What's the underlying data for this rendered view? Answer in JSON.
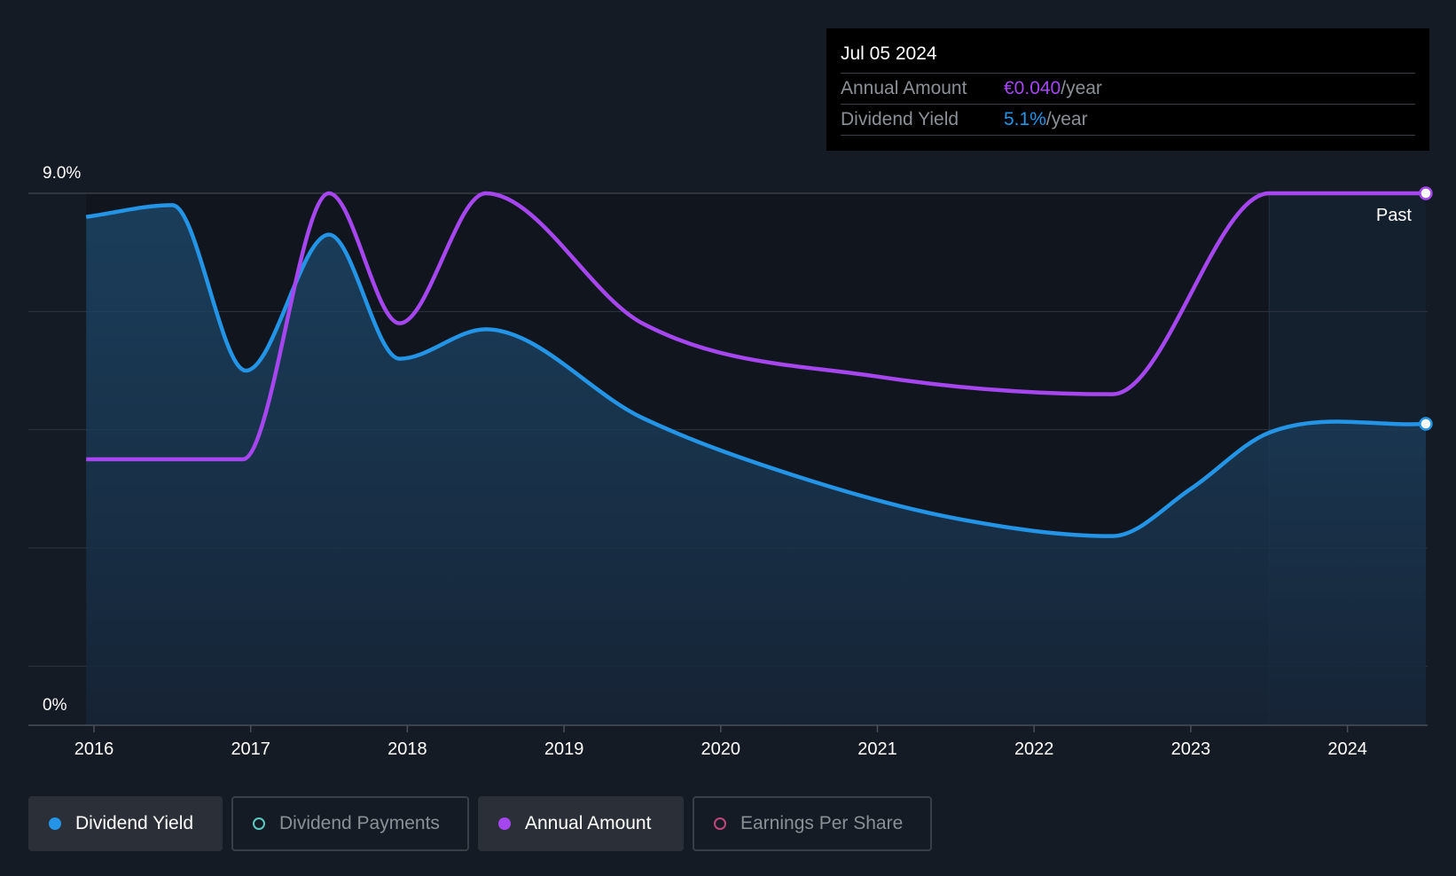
{
  "tooltip": {
    "date": "Jul 05 2024",
    "annual_label": "Annual Amount",
    "annual_value": "€0.040",
    "annual_unit": "/year",
    "yield_label": "Dividend Yield",
    "yield_value": "5.1%",
    "yield_unit": "/year"
  },
  "legend": [
    {
      "label": "Dividend Yield",
      "color": "#2394e6",
      "active": true,
      "filled": true
    },
    {
      "label": "Dividend Payments",
      "color": "#5cc9c0",
      "active": false,
      "filled": false
    },
    {
      "label": "Annual Amount",
      "color": "#a546ef",
      "active": true,
      "filled": true
    },
    {
      "label": "Earnings Per Share",
      "color": "#c0457a",
      "active": false,
      "filled": false
    }
  ],
  "colors": {
    "background": "#151b24",
    "yield": "#2394e6",
    "annual": "#a546ef",
    "grid": "#2e3540",
    "axis_text": "#ffffff"
  },
  "chart_data": {
    "type": "line",
    "ylabel_top": "9.0%",
    "ylabel_bottom": "0%",
    "ylim": [
      0,
      9.0
    ],
    "x_ticks": [
      "2016",
      "2017",
      "2018",
      "2019",
      "2020",
      "2021",
      "2022",
      "2023",
      "2024"
    ],
    "x_range": [
      2015.6,
      2024.5
    ],
    "past_label": "Past",
    "past_start": 2023.5,
    "series": [
      {
        "name": "Dividend Yield",
        "points": [
          [
            2015.95,
            8.6
          ],
          [
            2016.5,
            8.8
          ],
          [
            2016.97,
            6.0
          ],
          [
            2017.5,
            8.3
          ],
          [
            2017.95,
            6.2
          ],
          [
            2018.5,
            6.7
          ],
          [
            2019.5,
            5.2
          ],
          [
            2020.5,
            4.2
          ],
          [
            2021.5,
            3.5
          ],
          [
            2022.5,
            3.2
          ],
          [
            2023.0,
            4.0
          ],
          [
            2023.5,
            4.95
          ],
          [
            2024.5,
            5.1
          ]
        ]
      },
      {
        "name": "Annual Amount",
        "axis_value_label": "€0.040",
        "points": [
          [
            2015.95,
            4.5
          ],
          [
            2016.95,
            4.5
          ],
          [
            2017.5,
            9.0
          ],
          [
            2017.95,
            6.8
          ],
          [
            2018.5,
            9.0
          ],
          [
            2019.5,
            6.8
          ],
          [
            2021.0,
            5.9
          ],
          [
            2022.5,
            5.6
          ],
          [
            2023.5,
            9.0
          ],
          [
            2024.5,
            9.0
          ]
        ]
      }
    ]
  }
}
